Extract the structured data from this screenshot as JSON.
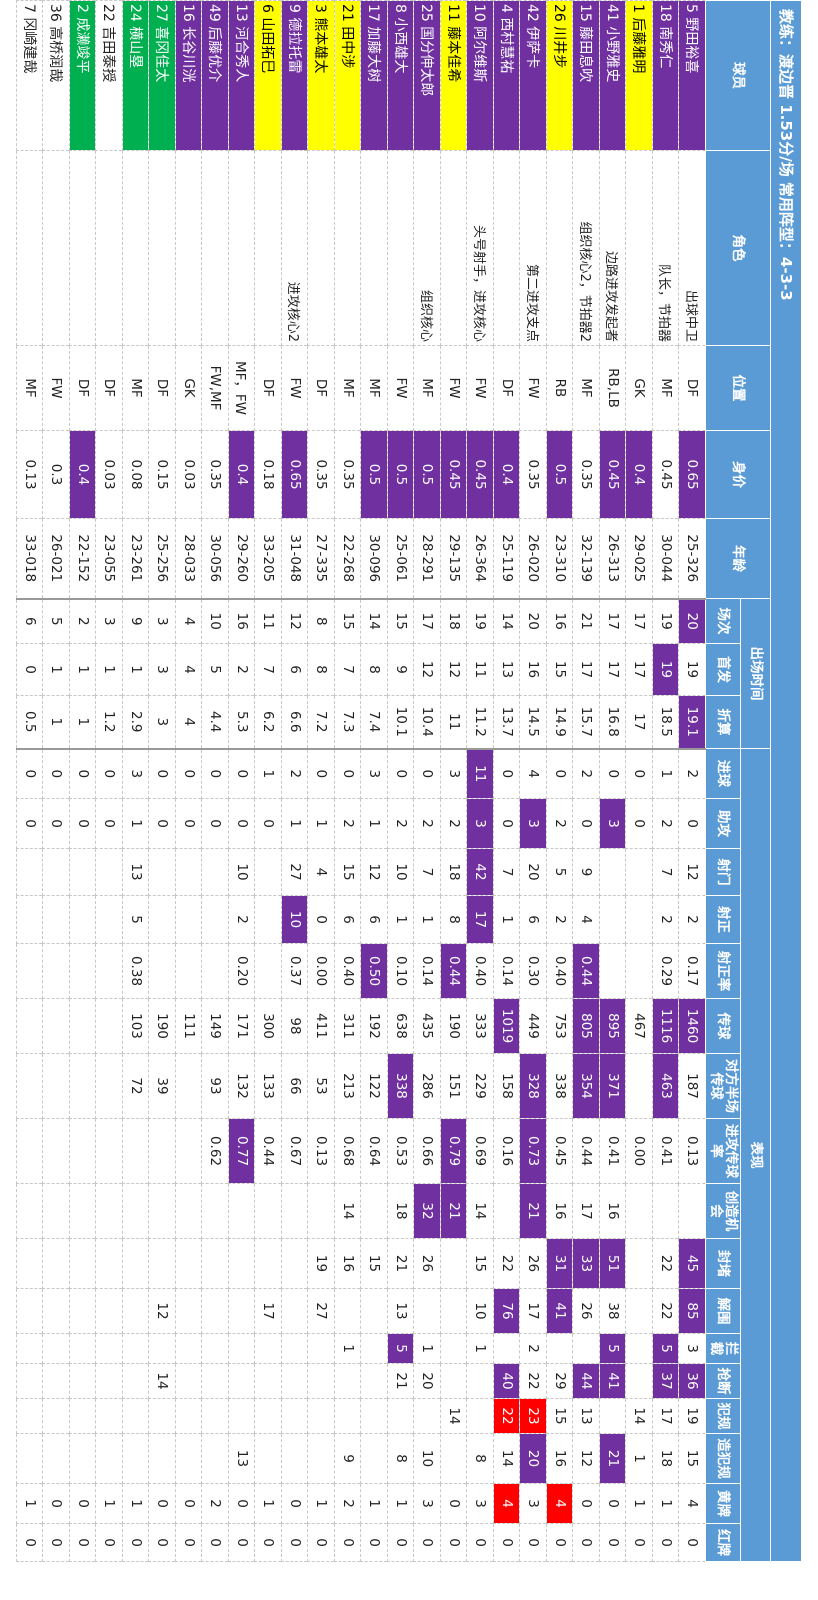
{
  "header": {
    "title": "教练：渡边晋 1.53分/场 常用阵型：4-3-3"
  },
  "table": {
    "groups": [
      {
        "label": "出场时间",
        "from": 5,
        "span": 3
      },
      {
        "label": "表现",
        "from": 8,
        "span": 17
      }
    ],
    "columns": [
      "球员",
      "角色",
      "位置",
      "身价",
      "年龄",
      "场次",
      "首发",
      "折算",
      "进球",
      "助攻",
      "射门",
      "射正",
      "射正率",
      "传球",
      "对方半场传球",
      "进攻传球率",
      "创造机会",
      "封堵",
      "解围",
      "拦截",
      "抢断",
      "犯规",
      "造犯规",
      "黄牌",
      "红牌"
    ],
    "colors": {
      "purple": "#7030a0",
      "red": "#ff0000"
    },
    "rows": [
      {
        "name_color": "#7030a0",
        "purple": [
          3,
          5,
          7,
          13,
          17,
          18,
          20
        ],
        "cells": [
          "5 野田裕喜",
          "出球中卫",
          "DF",
          0.65,
          "25-326",
          20,
          19,
          19.1,
          2,
          0,
          12,
          2,
          "0.17",
          1460,
          187,
          "0.13",
          null,
          45,
          85,
          3,
          36,
          19,
          15,
          4,
          0
        ]
      },
      {
        "name_color": "#7030a0",
        "purple": [
          6,
          13,
          14,
          19,
          20
        ],
        "cells": [
          "18 南秀仁",
          "队长，节拍器",
          "MF",
          0.45,
          "30-044",
          19,
          19,
          18.5,
          1,
          2,
          7,
          2,
          "0.29",
          1116,
          463,
          "0.41",
          null,
          22,
          22,
          5,
          37,
          17,
          18,
          1,
          0
        ]
      },
      {
        "name_color": "#ffff00",
        "purple": [
          3
        ],
        "cells": [
          "1 后藤雅明",
          null,
          "GK",
          0.4,
          "29-025",
          17,
          17,
          17,
          0,
          0,
          null,
          null,
          null,
          467,
          null,
          "0.00",
          null,
          null,
          null,
          null,
          null,
          14,
          1,
          1,
          0
        ]
      },
      {
        "name_color": "#7030a0",
        "purple": [
          3,
          9,
          13,
          14,
          17,
          19,
          20,
          22
        ],
        "cells": [
          "41 小野雅史",
          "边路进攻发起者",
          "RB,LB",
          0.45,
          "26-313",
          17,
          17,
          16.8,
          0,
          3,
          null,
          null,
          null,
          895,
          371,
          "0.41",
          16,
          51,
          38,
          5,
          41,
          null,
          21,
          0,
          0
        ]
      },
      {
        "name_color": "#7030a0",
        "purple": [
          12,
          13,
          14,
          17,
          20
        ],
        "cells": [
          "15 藤田息吹",
          "组织核心2，节拍器2",
          "MF",
          0.35,
          "32-139",
          21,
          17,
          15.7,
          2,
          0,
          9,
          4,
          "0.44",
          805,
          354,
          "0.44",
          17,
          33,
          26,
          null,
          44,
          13,
          12,
          0,
          0
        ]
      },
      {
        "name_color": "#ffff00",
        "purple": [
          3,
          17,
          18
        ],
        "red": [
          23
        ],
        "cells": [
          "26 川井步",
          null,
          "RB",
          0.5,
          "23-310",
          16,
          15,
          14.9,
          0,
          2,
          5,
          2,
          "0.40",
          753,
          338,
          "0.45",
          16,
          31,
          41,
          null,
          29,
          15,
          16,
          4,
          0
        ]
      },
      {
        "name_color": "#7030a0",
        "purple": [
          9,
          14,
          15,
          16,
          22
        ],
        "red": [
          21
        ],
        "cells": [
          "42 伊萨卡",
          "第二进攻支点",
          "FW",
          0.35,
          "26-020",
          20,
          16,
          14.5,
          4,
          3,
          20,
          6,
          "0.30",
          449,
          328,
          "0.73",
          21,
          26,
          17,
          2,
          22,
          23,
          20,
          3,
          0
        ]
      },
      {
        "name_color": "#7030a0",
        "purple": [
          3,
          13,
          18,
          20
        ],
        "red": [
          21,
          23
        ],
        "cells": [
          "4 西村慧祐",
          null,
          "DF",
          0.4,
          "25-119",
          14,
          13,
          13.7,
          0,
          0,
          7,
          1,
          "0.14",
          1019,
          158,
          "0.16",
          null,
          22,
          76,
          null,
          40,
          22,
          14,
          4,
          0
        ]
      },
      {
        "name_color": "#7030a0",
        "purple": [
          3,
          8,
          9,
          10,
          11
        ],
        "cells": [
          "10 阿尔维斯",
          "头号射手，进攻核心",
          "FW",
          0.45,
          "26-364",
          19,
          11,
          11.2,
          11,
          3,
          42,
          17,
          "0.40",
          333,
          229,
          "0.69",
          14,
          15,
          10,
          1,
          null,
          null,
          8,
          3,
          0
        ]
      },
      {
        "name_color": "#ffff00",
        "purple": [
          3,
          12,
          15,
          16
        ],
        "cells": [
          "11 藤本佳希",
          null,
          "FW",
          0.45,
          "29-135",
          18,
          12,
          11,
          3,
          2,
          18,
          8,
          "0.44",
          190,
          151,
          "0.79",
          21,
          null,
          null,
          null,
          null,
          14,
          null,
          0,
          0
        ]
      },
      {
        "name_color": "#7030a0",
        "purple": [
          3,
          16
        ],
        "cells": [
          "25 国分伸太郎",
          "组织核心",
          "MF",
          0.5,
          "28-291",
          17,
          12,
          10.4,
          0,
          2,
          7,
          1,
          "0.14",
          435,
          286,
          "0.66",
          32,
          26,
          null,
          1,
          20,
          null,
          10,
          3,
          0
        ]
      },
      {
        "name_color": "#7030a0",
        "purple": [
          3,
          14,
          19
        ],
        "cells": [
          "8 小西雄大",
          null,
          "FW",
          0.5,
          "25-061",
          15,
          9,
          10.1,
          0,
          2,
          10,
          1,
          "0.10",
          638,
          338,
          "0.53",
          18,
          21,
          13,
          5,
          21,
          null,
          8,
          1,
          0
        ]
      },
      {
        "name_color": "#7030a0",
        "purple": [
          3,
          12
        ],
        "cells": [
          "17 加藤大树",
          null,
          "MF",
          0.5,
          "30-096",
          14,
          8,
          7.4,
          3,
          1,
          12,
          6,
          "0.50",
          192,
          122,
          "0.64",
          null,
          15,
          null,
          null,
          null,
          null,
          null,
          1,
          0
        ]
      },
      {
        "name_color": "#ffff00",
        "cells": [
          "21 田中涉",
          null,
          "MF",
          0.35,
          "22-268",
          15,
          7,
          7.3,
          0,
          2,
          15,
          6,
          "0.40",
          311,
          213,
          "0.68",
          14,
          16,
          null,
          1,
          null,
          null,
          9,
          2,
          0
        ]
      },
      {
        "name_color": "#ffff00",
        "cells": [
          "3 熊本雄太",
          null,
          "DF",
          0.35,
          "27-335",
          8,
          8,
          7.2,
          0,
          1,
          4,
          0,
          "0.00",
          411,
          53,
          "0.13",
          null,
          19,
          27,
          null,
          null,
          null,
          null,
          1,
          0
        ]
      },
      {
        "name_color": "#7030a0",
        "purple": [
          3,
          11
        ],
        "cells": [
          "9 德拉托雷",
          "进攻核心2",
          "FW",
          0.65,
          "31-048",
          12,
          6,
          6.6,
          2,
          1,
          27,
          10,
          "0.37",
          98,
          66,
          "0.67",
          null,
          null,
          null,
          null,
          null,
          null,
          null,
          0,
          0
        ]
      },
      {
        "name_color": "#ffff00",
        "cells": [
          "6 山田拓巳",
          null,
          "DF",
          0.18,
          "33-205",
          11,
          7,
          6.2,
          1,
          0,
          null,
          null,
          null,
          300,
          133,
          "0.44",
          null,
          null,
          17,
          null,
          null,
          null,
          null,
          1,
          0
        ]
      },
      {
        "name_color": "#7030a0",
        "purple": [
          3,
          15
        ],
        "cells": [
          "13 河合秀人",
          null,
          "MF，FW",
          0.4,
          "29-260",
          16,
          2,
          5.3,
          0,
          0,
          10,
          2,
          "0.20",
          171,
          132,
          "0.77",
          null,
          null,
          null,
          null,
          null,
          null,
          13,
          0,
          0
        ]
      },
      {
        "name_color": "#7030a0",
        "cells": [
          "49 后藤优介",
          null,
          "FW,MF",
          0.35,
          "30-056",
          10,
          5,
          4.4,
          0,
          0,
          null,
          null,
          null,
          149,
          93,
          "0.62",
          null,
          null,
          null,
          null,
          null,
          null,
          null,
          2,
          0
        ]
      },
      {
        "name_color": "#7030a0",
        "cells": [
          "16 长谷川洸",
          null,
          "GK",
          0.03,
          "28-033",
          4,
          4,
          4,
          0,
          0,
          null,
          null,
          null,
          111,
          null,
          null,
          null,
          null,
          null,
          null,
          null,
          null,
          null,
          0,
          0
        ]
      },
      {
        "name_color": "#00b050",
        "cells": [
          "27 喜冈佳太",
          null,
          "DF",
          0.15,
          "25-256",
          3,
          3,
          3,
          0,
          0,
          null,
          null,
          null,
          190,
          39,
          null,
          null,
          null,
          12,
          null,
          14,
          null,
          null,
          0,
          0
        ]
      },
      {
        "name_color": "#00b050",
        "cells": [
          "24 横山塁",
          null,
          "MF",
          0.08,
          "23-261",
          9,
          1,
          2.9,
          3,
          1,
          13,
          5,
          "0.38",
          103,
          72,
          null,
          null,
          null,
          null,
          null,
          null,
          null,
          null,
          1,
          0
        ]
      },
      {
        "cells": [
          "22 吉田泰授",
          null,
          "DF",
          0.03,
          "23-055",
          3,
          1,
          1.2,
          0,
          0,
          null,
          null,
          null,
          null,
          null,
          null,
          null,
          null,
          null,
          null,
          null,
          null,
          null,
          1,
          0
        ]
      },
      {
        "name_color": "#00b050",
        "purple": [
          3
        ],
        "cells": [
          "2 成濑竣平",
          null,
          "DF",
          0.4,
          "22-152",
          2,
          1,
          1,
          0,
          0,
          null,
          null,
          null,
          null,
          null,
          null,
          null,
          null,
          null,
          null,
          null,
          null,
          null,
          0,
          0
        ]
      },
      {
        "cells": [
          "36 高桥润哉",
          null,
          "FW",
          0.3,
          "26-021",
          5,
          1,
          1,
          0,
          0,
          null,
          null,
          null,
          null,
          null,
          null,
          null,
          null,
          null,
          null,
          null,
          null,
          null,
          0,
          0
        ]
      },
      {
        "cells": [
          "7 冈崎建哉",
          null,
          "MF",
          0.13,
          "33-018",
          6,
          0,
          0.5,
          0,
          0,
          null,
          null,
          null,
          null,
          null,
          null,
          null,
          null,
          null,
          null,
          null,
          null,
          null,
          1,
          0
        ]
      }
    ]
  }
}
